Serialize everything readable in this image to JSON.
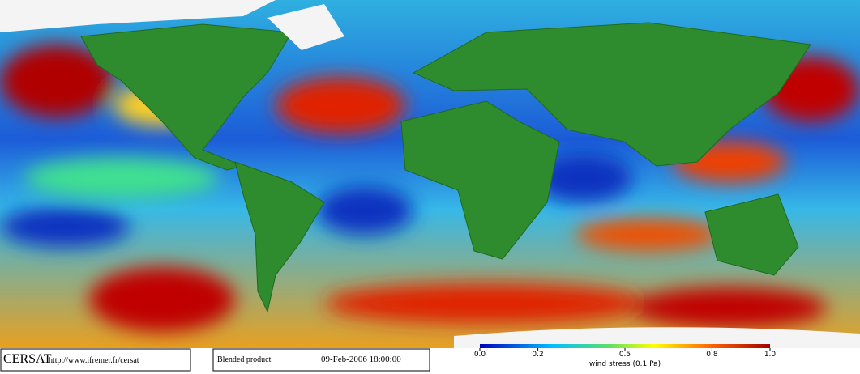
{
  "logo": "CERSAT",
  "url": "http://www.ifremer.fr/cersat",
  "product": "Blended product",
  "datetime": "09-Feb-2006 18:00:00",
  "colorbar": {
    "label": "wind stress (0.1 Pa)",
    "range": [
      0,
      1
    ],
    "ticks": [
      {
        "value": 0,
        "label": "0.0"
      },
      0.2,
      0.5,
      0.8,
      {
        "value": 1,
        "label": "1.0"
      }
    ]
  }
}
